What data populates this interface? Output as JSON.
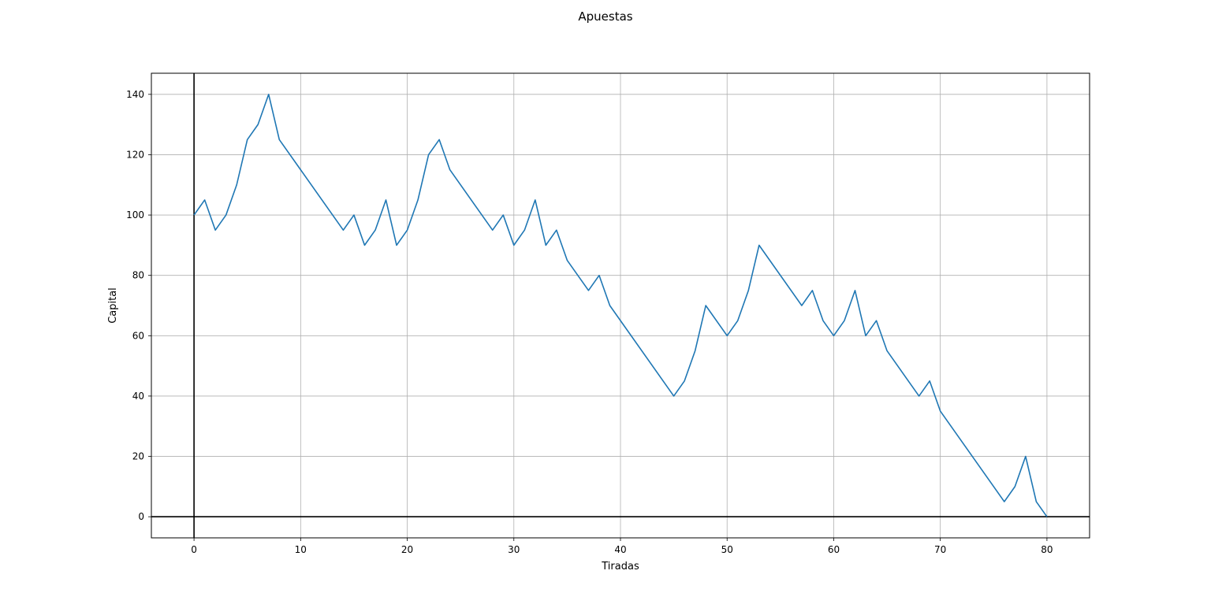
{
  "chart_data": {
    "type": "line",
    "title": "Apuestas",
    "xlabel": "Tiradas",
    "ylabel": "Capital",
    "xlim": [
      -4,
      84
    ],
    "ylim": [
      -7,
      147
    ],
    "xticks": [
      0,
      10,
      20,
      30,
      40,
      50,
      60,
      70,
      80
    ],
    "yticks": [
      0,
      20,
      40,
      60,
      80,
      100,
      120,
      140
    ],
    "grid": true,
    "axis_lines": {
      "x": 0,
      "y": 0
    },
    "series": [
      {
        "color": "#1f77b4",
        "x": [
          0,
          1,
          2,
          3,
          4,
          5,
          6,
          7,
          8,
          14,
          15,
          16,
          17,
          18,
          19,
          20,
          21,
          22,
          23,
          24,
          28,
          29,
          30,
          31,
          32,
          33,
          34,
          35,
          37,
          38,
          39,
          45,
          46,
          47,
          48,
          50,
          51,
          52,
          53,
          57,
          58,
          59,
          60,
          61,
          62,
          63,
          64,
          65,
          68,
          69,
          70,
          76,
          77,
          78,
          79,
          80
        ],
        "y": [
          100,
          105,
          95,
          100,
          110,
          125,
          130,
          140,
          125,
          95,
          100,
          90,
          95,
          105,
          90,
          95,
          105,
          120,
          125,
          115,
          95,
          100,
          90,
          95,
          105,
          90,
          95,
          85,
          75,
          80,
          70,
          40,
          45,
          55,
          70,
          60,
          65,
          75,
          90,
          70,
          75,
          65,
          60,
          65,
          75,
          60,
          65,
          55,
          40,
          45,
          35,
          5,
          10,
          20,
          5,
          0
        ]
      }
    ]
  }
}
